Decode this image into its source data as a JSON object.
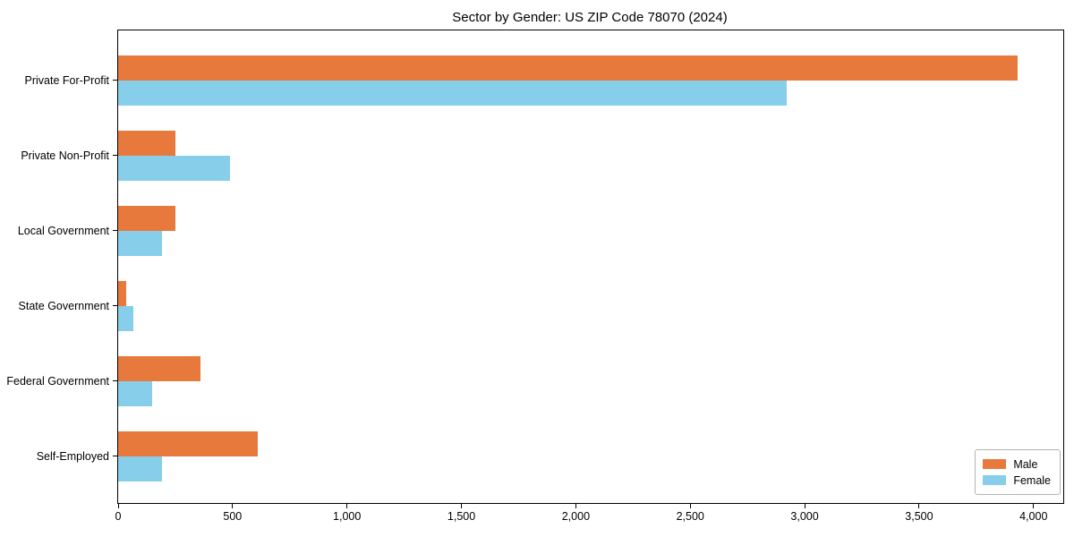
{
  "chart_data": {
    "type": "bar",
    "orientation": "horizontal",
    "title": "Sector by Gender: US ZIP Code 78070 (2024)",
    "xlabel": "",
    "ylabel": "",
    "categories": [
      "Private For-Profit",
      "Private Non-Profit",
      "Local Government",
      "State Government",
      "Federal Government",
      "Self-Employed"
    ],
    "series": [
      {
        "name": "Male",
        "color": "#e8793c",
        "values": [
          3930,
          250,
          250,
          35,
          360,
          610
        ]
      },
      {
        "name": "Female",
        "color": "#87ceeb",
        "values": [
          2920,
          490,
          190,
          65,
          150,
          190
        ]
      }
    ],
    "xlim": [
      0,
      4130
    ],
    "xticks": [
      0,
      500,
      1000,
      1500,
      2000,
      2500,
      3000,
      3500,
      4000
    ],
    "xtick_labels": [
      "0",
      "500",
      "1,000",
      "1,500",
      "2,000",
      "2,500",
      "3,000",
      "3,500",
      "4,000"
    ],
    "grid": false,
    "legend": {
      "position": "lower-right",
      "labels": [
        "Male",
        "Female"
      ]
    }
  }
}
